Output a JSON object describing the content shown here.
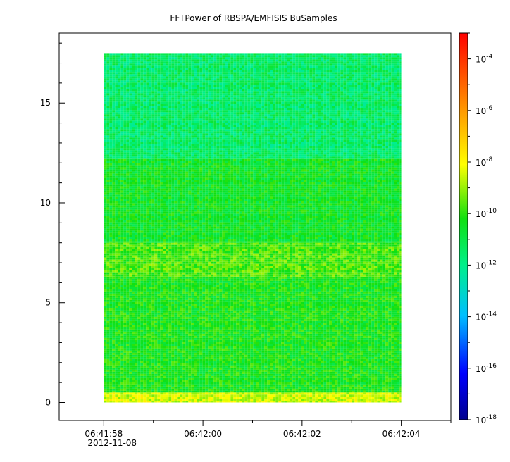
{
  "chart_data": {
    "type": "heatmap",
    "title": "FFTPower of RBSPA/EMFISIS  BuSamples",
    "xlabel": "",
    "ylabel": "",
    "x_ticks": [
      {
        "time": "06:41:58",
        "date": "2012-11-08"
      },
      {
        "time": "06:42:00",
        "date": ""
      },
      {
        "time": "06:42:02",
        "date": ""
      },
      {
        "time": "06:42:04",
        "date": ""
      }
    ],
    "x_range": [
      "06:41:57.1",
      "06:42:05.0"
    ],
    "data_x_range": [
      "06:41:58.0",
      "06:42:04.0"
    ],
    "y_ticks": [
      0,
      5,
      10,
      15
    ],
    "ylim": [
      -0.9,
      18.5
    ],
    "data_y_range": [
      0,
      17.5
    ],
    "colorbar": {
      "scale": "log",
      "colormap": "rainbow",
      "range": [
        1e-18,
        0.001
      ],
      "ticks": [
        {
          "base": "10",
          "exp": "-18",
          "value": -18
        },
        {
          "base": "10",
          "exp": "-16",
          "value": -16
        },
        {
          "base": "10",
          "exp": "-14",
          "value": -14
        },
        {
          "base": "10",
          "exp": "-12",
          "value": -12
        },
        {
          "base": "10",
          "exp": "-10",
          "value": -10
        },
        {
          "base": "10",
          "exp": "-8",
          "value": -8
        },
        {
          "base": "10",
          "exp": "-6",
          "value": -6
        },
        {
          "base": "10",
          "exp": "-4",
          "value": -4
        }
      ]
    },
    "bands": [
      {
        "y_from": 0,
        "y_to": 0.5,
        "log_power": -8.5
      },
      {
        "y_from": 0.5,
        "y_to": 6.3,
        "log_power": -10.3
      },
      {
        "y_from": 6.3,
        "y_to": 8.0,
        "log_power": -9.7
      },
      {
        "y_from": 8.0,
        "y_to": 12.2,
        "log_power": -10.5
      },
      {
        "y_from": 12.2,
        "y_to": 17.5,
        "log_power": -11.5
      }
    ],
    "grid": false
  }
}
